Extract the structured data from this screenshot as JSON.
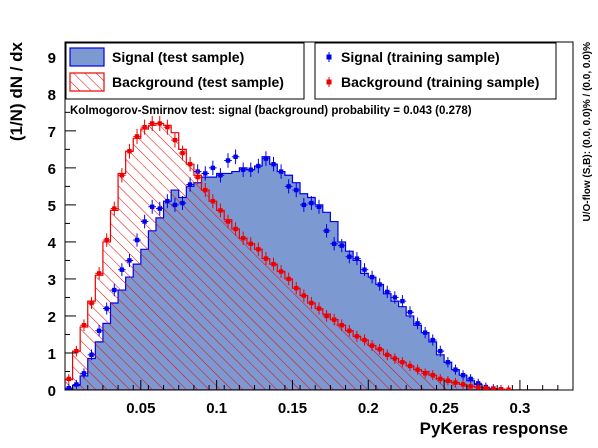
{
  "chart_data": {
    "type": "histogram",
    "xlabel": "PyKeras response",
    "ylabel": "(1/N) dN / dx",
    "side_text": "U/O-flow (S,B): (0.0, 0.0)% / (0.0, 0.0)%",
    "ks_text": "Kolmogorov-Smirnov test: signal (background) probability = 0.043 (0.278)",
    "xlim": [
      0.0,
      0.335
    ],
    "ylim": [
      0,
      9.4
    ],
    "x_ticks": [
      "0.05",
      "0.1",
      "0.15",
      "0.2",
      "0.25",
      "0.3"
    ],
    "x_tick_values": [
      0.05,
      0.1,
      0.15,
      0.2,
      0.25,
      0.3
    ],
    "y_ticks": [
      "0",
      "1",
      "2",
      "3",
      "4",
      "5",
      "6",
      "7",
      "8",
      "9"
    ],
    "y_tick_values": [
      0,
      1,
      2,
      3,
      4,
      5,
      6,
      7,
      8,
      9
    ],
    "bin_edges": [
      0.0,
      0.005,
      0.01,
      0.015,
      0.02,
      0.025,
      0.03,
      0.035,
      0.04,
      0.045,
      0.05,
      0.055,
      0.06,
      0.065,
      0.07,
      0.075,
      0.08,
      0.085,
      0.09,
      0.095,
      0.1,
      0.105,
      0.11,
      0.115,
      0.12,
      0.125,
      0.13,
      0.135,
      0.14,
      0.145,
      0.15,
      0.155,
      0.16,
      0.165,
      0.17,
      0.175,
      0.18,
      0.185,
      0.19,
      0.195,
      0.2,
      0.205,
      0.21,
      0.215,
      0.22,
      0.225,
      0.23,
      0.235,
      0.24,
      0.245,
      0.25,
      0.255,
      0.26,
      0.265,
      0.27,
      0.275,
      0.28,
      0.285,
      0.29,
      0.295,
      0.3,
      0.305,
      0.31,
      0.315,
      0.32,
      0.325
    ],
    "series": [
      {
        "name": "Signal (test sample)",
        "style": "filled-histogram",
        "fill": "#7d99d1",
        "line": "#0000ee",
        "values": [
          0.02,
          0.12,
          0.38,
          0.85,
          1.3,
          1.8,
          2.35,
          2.7,
          3.05,
          3.4,
          3.8,
          4.3,
          4.65,
          5.1,
          5.4,
          5.2,
          5.5,
          5.6,
          5.75,
          5.75,
          5.85,
          5.85,
          5.9,
          6.0,
          5.95,
          6.05,
          6.3,
          6.1,
          5.9,
          5.8,
          5.6,
          5.3,
          5.2,
          5.0,
          4.8,
          4.55,
          4.0,
          3.75,
          3.5,
          3.15,
          3.05,
          2.85,
          2.6,
          2.4,
          2.25,
          2.0,
          1.75,
          1.55,
          1.3,
          0.95,
          0.75,
          0.55,
          0.4,
          0.25,
          0.15,
          0.06,
          0.03,
          0.01,
          0.0,
          0.0,
          0.0,
          0.0,
          0.0,
          0.0,
          0.0
        ]
      },
      {
        "name": "Background (test sample)",
        "style": "hatched-histogram",
        "color": "#ee0000",
        "values": [
          0.28,
          1.05,
          1.7,
          2.4,
          3.1,
          4.0,
          4.85,
          5.85,
          6.45,
          6.8,
          7.05,
          7.15,
          7.2,
          7.15,
          6.95,
          6.5,
          6.1,
          5.8,
          5.4,
          5.1,
          4.85,
          4.6,
          4.35,
          4.1,
          3.95,
          3.8,
          3.55,
          3.4,
          3.2,
          3.0,
          2.75,
          2.55,
          2.35,
          2.2,
          2.05,
          1.9,
          1.75,
          1.6,
          1.45,
          1.35,
          1.2,
          1.1,
          0.95,
          0.85,
          0.75,
          0.65,
          0.55,
          0.5,
          0.4,
          0.3,
          0.25,
          0.2,
          0.15,
          0.1,
          0.08,
          0.05,
          0.03,
          0.02,
          0.01,
          0.0,
          0.0,
          0.0,
          0.0,
          0.0,
          0.0
        ]
      },
      {
        "name": "Signal (training sample)",
        "style": "markers-with-errors",
        "color": "#0000ee",
        "values": [
          0.05,
          0.15,
          0.45,
          0.95,
          1.6,
          2.2,
          2.7,
          3.25,
          3.5,
          4.05,
          4.55,
          4.95,
          4.9,
          5.1,
          5.0,
          5.05,
          5.55,
          5.9,
          5.85,
          6.0,
          5.8,
          6.2,
          6.3,
          5.95,
          5.95,
          6.05,
          6.25,
          6.1,
          5.9,
          5.5,
          5.4,
          5.0,
          5.05,
          4.95,
          4.3,
          3.95,
          3.9,
          3.6,
          3.55,
          3.25,
          3.05,
          2.85,
          2.65,
          2.5,
          2.4,
          2.1,
          1.8,
          1.55,
          1.35,
          1.05,
          0.75,
          0.55,
          0.4,
          0.3,
          0.18,
          0.08,
          0.04,
          0.02,
          0.0,
          0.0,
          0.0,
          0.0,
          0.0,
          0.0,
          0.0
        ]
      },
      {
        "name": "Background (training sample)",
        "style": "markers-with-errors",
        "color": "#ee0000",
        "values": [
          0.3,
          1.05,
          1.75,
          2.35,
          3.15,
          4.05,
          4.9,
          5.8,
          6.45,
          6.85,
          7.1,
          7.2,
          7.2,
          7.1,
          6.75,
          6.4,
          6.1,
          5.75,
          5.4,
          5.1,
          4.85,
          4.55,
          4.35,
          4.1,
          3.95,
          3.8,
          3.55,
          3.4,
          3.2,
          3.0,
          2.75,
          2.55,
          2.35,
          2.2,
          2.0,
          1.9,
          1.75,
          1.6,
          1.45,
          1.35,
          1.2,
          1.1,
          0.95,
          0.85,
          0.75,
          0.65,
          0.55,
          0.45,
          0.4,
          0.3,
          0.25,
          0.2,
          0.15,
          0.1,
          0.07,
          0.05,
          0.03,
          0.02,
          0.01,
          0.0,
          0.0,
          0.0,
          0.0,
          0.0,
          0.0
        ]
      }
    ],
    "legend_placement": "top"
  }
}
